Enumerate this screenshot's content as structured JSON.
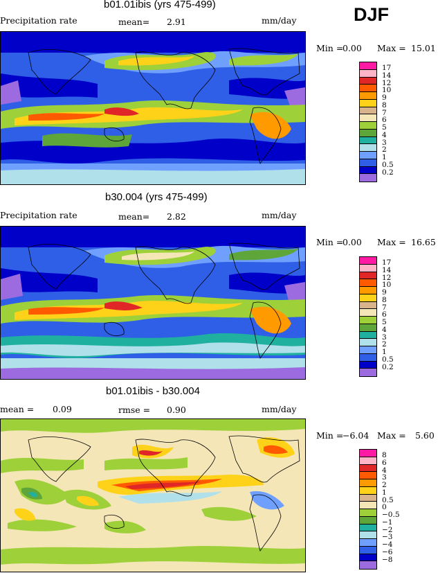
{
  "season": "DJF",
  "panels": [
    {
      "title": "b01.01ibis (yrs 475-499)",
      "left_label": "Precipitation rate",
      "mean_label": "mean=",
      "mean_value": "2.91",
      "units": "mm/day",
      "min_label": "Min =",
      "min_value": "0.00",
      "max_label": "Max =",
      "max_value": "15.01",
      "levels": [
        "17",
        "14",
        "12",
        "10",
        "9",
        "8",
        "7",
        "6",
        "5",
        "4",
        "3",
        "2",
        "1",
        "0.5",
        "0.2"
      ],
      "colors": [
        "#ff1aa3",
        "#ffb3c6",
        "#e02626",
        "#ff5a00",
        "#ff9a00",
        "#ffd21a",
        "#d9b38c",
        "#f5e6b8",
        "#9ed03a",
        "#5fa63a",
        "#20b0a0",
        "#b0e0ea",
        "#6fa0ff",
        "#2e5fe6",
        "#0000c8",
        "#9b6bdf"
      ]
    },
    {
      "title": "b30.004 (yrs 475-499)",
      "left_label": "Precipitation rate",
      "mean_label": "mean=",
      "mean_value": "2.82",
      "units": "mm/day",
      "min_label": "Min =",
      "min_value": "0.00",
      "max_label": "Max =",
      "max_value": "16.65",
      "levels": [
        "17",
        "14",
        "12",
        "10",
        "9",
        "8",
        "7",
        "6",
        "5",
        "4",
        "3",
        "2",
        "1",
        "0.5",
        "0.2"
      ],
      "colors": [
        "#ff1aa3",
        "#ffb3c6",
        "#e02626",
        "#ff5a00",
        "#ff9a00",
        "#ffd21a",
        "#d9b38c",
        "#f5e6b8",
        "#9ed03a",
        "#5fa63a",
        "#20b0a0",
        "#b0e0ea",
        "#6fa0ff",
        "#2e5fe6",
        "#0000c8",
        "#9b6bdf"
      ]
    },
    {
      "title": "b01.01ibis - b30.004",
      "left_label": "mean =",
      "left_value": "0.09",
      "mean_label": "rmse =",
      "mean_value": "0.90",
      "units": "mm/day",
      "min_label": "Min =",
      "min_value": "−6.04",
      "max_label": "Max =",
      "max_value": "5.60",
      "levels": [
        "8",
        "6",
        "4",
        "3",
        "2",
        "1",
        "0.5",
        "0",
        "−0.5",
        "−1",
        "−2",
        "−3",
        "−4",
        "−6",
        "−8"
      ],
      "colors": [
        "#ff1aa3",
        "#ffb3c6",
        "#e02626",
        "#ff5a00",
        "#ff9a00",
        "#ffd21a",
        "#d9b38c",
        "#f5e6b8",
        "#9ed03a",
        "#5fa63a",
        "#20b0a0",
        "#b0e0ea",
        "#6fa0ff",
        "#2e5fe6",
        "#0000c8",
        "#9b6bdf"
      ]
    }
  ]
}
